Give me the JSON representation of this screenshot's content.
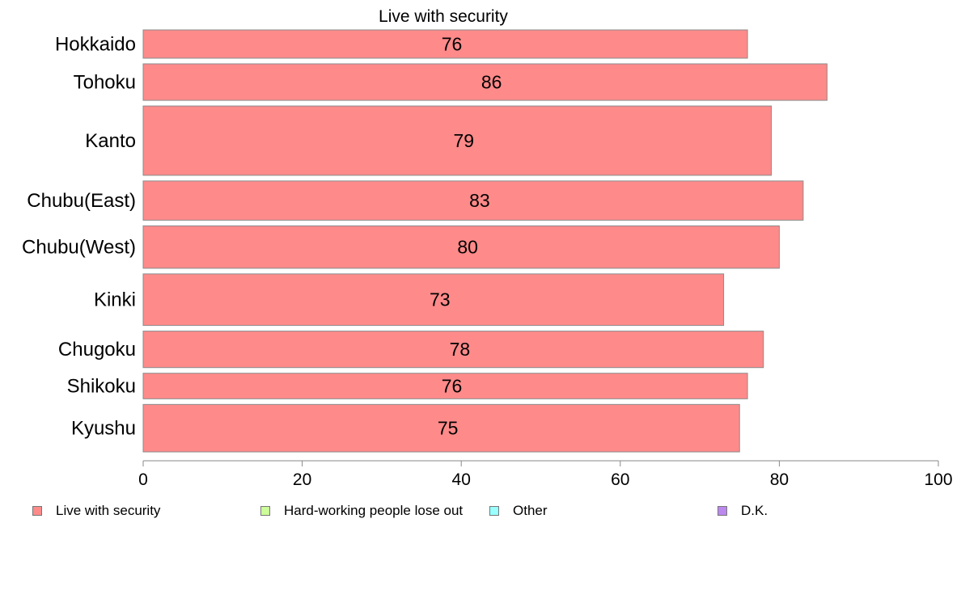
{
  "chart_data": {
    "type": "bar",
    "orientation": "horizontal",
    "title": "Live with security",
    "categories": [
      "Hokkaido",
      "Tohoku",
      "Kanto",
      "Chubu(East)",
      "Chubu(West)",
      "Kinki",
      "Chugoku",
      "Shikoku",
      "Kyushu"
    ],
    "series": [
      {
        "name": "Live with security",
        "values": [
          76,
          86,
          79,
          83,
          80,
          73,
          78,
          76,
          75
        ]
      }
    ],
    "data_labels": [
      "76",
      "86",
      "79",
      "83",
      "80",
      "73",
      "78",
      "76",
      "75"
    ],
    "bar_relative_widths": [
      0.62,
      0.8,
      1.52,
      0.86,
      0.93,
      1.13,
      0.8,
      0.56,
      1.04
    ],
    "xlim": [
      0,
      100
    ],
    "x_ticks": [
      0,
      20,
      40,
      60,
      80,
      100
    ],
    "x_tick_labels": [
      "0",
      "20",
      "40",
      "60",
      "80",
      "100"
    ],
    "xlabel": "",
    "ylabel": "",
    "grid": false,
    "legend_placement": "bottom",
    "legend": [
      {
        "label": "Live with security",
        "color": "#ff8a8a"
      },
      {
        "label": "Hard-working people lose out",
        "color": "#ccff99"
      },
      {
        "label": "Other",
        "color": "#99ffff"
      },
      {
        "label": "D.K.",
        "color": "#bb88ee"
      }
    ],
    "colors": {
      "bar": "#ff8a8a",
      "bar_border": "#8a8a8a",
      "axis": "#888888"
    }
  }
}
